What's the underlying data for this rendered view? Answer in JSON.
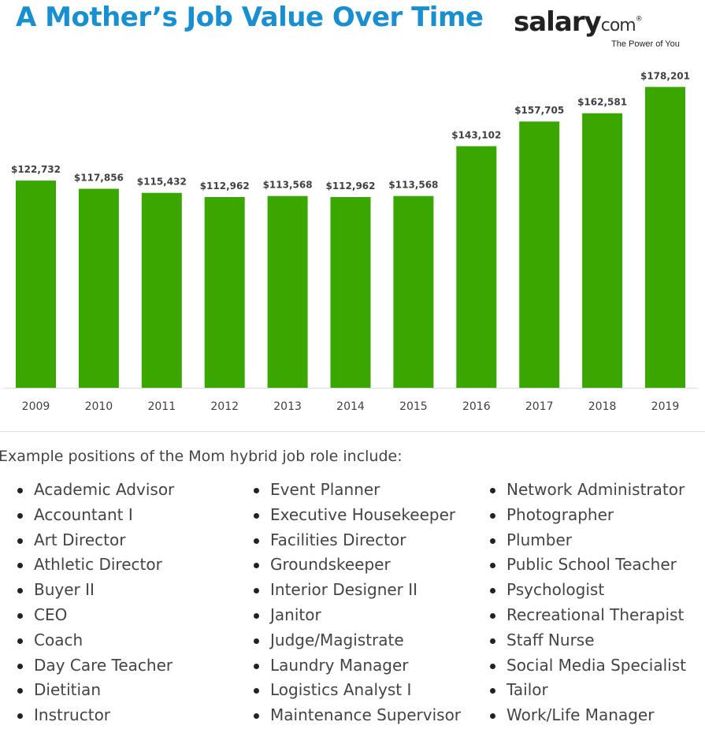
{
  "title": "A Mother’s Job Value Over Time",
  "logo": {
    "brand": "salary",
    "suffix": "com",
    "reg": "®",
    "tagline": "The Power of You"
  },
  "chart_data": {
    "type": "bar",
    "categories": [
      "2009",
      "2010",
      "2011",
      "2012",
      "2013",
      "2014",
      "2015",
      "2016",
      "2017",
      "2018",
      "2019"
    ],
    "values": [
      122732,
      117856,
      115432,
      112962,
      113568,
      112962,
      113568,
      143102,
      157705,
      162581,
      178201
    ],
    "value_labels": [
      "$122,732",
      "$117,856",
      "$115,432",
      "$112,962",
      "$113,568",
      "$112,962",
      "$113,568",
      "$143,102",
      "$157,705",
      "$162,581",
      "$178,201"
    ],
    "ylim": [
      0,
      190000
    ],
    "bar_color": "#3aa700",
    "grid": false
  },
  "intro": "Example positions of the Mom hybrid job role include:",
  "positions": {
    "col1": [
      "Academic Advisor",
      "Accountant I",
      "Art Director",
      "Athletic Director",
      "Buyer II",
      "CEO",
      "Coach",
      "Day Care Teacher",
      "Dietitian",
      "Instructor"
    ],
    "col2": [
      "Event Planner",
      "Executive Housekeeper",
      "Facilities Director",
      "Groundskeeper",
      "Interior Designer II",
      "Janitor",
      "Judge/Magistrate",
      "Laundry Manager",
      "Logistics Analyst I",
      "Maintenance Supervisor"
    ],
    "col3": [
      "Network Administrator",
      "Photographer",
      "Plumber",
      "Public School Teacher",
      "Psychologist",
      "Recreational Therapist",
      "Staff Nurse",
      "Social Media Specialist",
      "Tailor",
      "Work/Life Manager"
    ]
  }
}
